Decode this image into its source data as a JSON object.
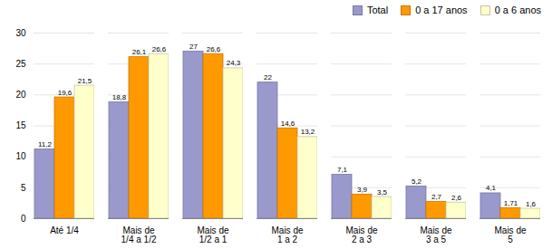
{
  "chart_data": {
    "type": "bar",
    "categories": [
      "Até 1/4",
      "Mais de\n1/4 a 1/2",
      "Mais de\n1/2 a 1",
      "Mais de\n1 a 2",
      "Mais de\n2 a 3",
      "Mais de\n3 a 5",
      "Mais de\n5"
    ],
    "series": [
      {
        "name": "Total",
        "color": "#9999CC",
        "values": [
          11.2,
          18.8,
          27.0,
          22.0,
          7.1,
          5.2,
          4.1
        ],
        "value_labels": [
          "11,2",
          "18,8",
          "27",
          "22",
          "7,1",
          "5,2",
          "4,1"
        ]
      },
      {
        "name": "0 a 17 anos",
        "color": "#FF9900",
        "values": [
          19.6,
          26.1,
          26.6,
          14.6,
          3.9,
          2.7,
          1.71
        ],
        "value_labels": [
          "19,6",
          "26,1",
          "26,6",
          "14,6",
          "3,9",
          "2,7",
          "1,71"
        ]
      },
      {
        "name": "0 a 6 anos",
        "color": "#FFFFCC",
        "values": [
          21.5,
          26.6,
          24.3,
          13.2,
          3.5,
          2.6,
          1.6
        ],
        "value_labels": [
          "21,5",
          "26,6",
          "24,3",
          "13,2",
          "3,5",
          "2,6",
          "1,6"
        ]
      }
    ],
    "ylim": [
      0,
      30
    ],
    "yticks": [
      0,
      5,
      10,
      15,
      20,
      25,
      30
    ],
    "grid": true,
    "legend": "upper right",
    "data_labels": true
  }
}
